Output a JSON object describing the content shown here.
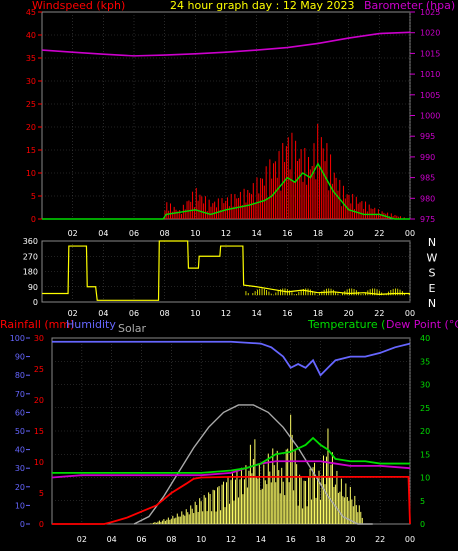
{
  "header": {
    "title": "24 hour graph day : 12 May 2023",
    "left_label": "Windspeed (kph)",
    "right_label": "Barometer (hpa)"
  },
  "colors": {
    "background": "#000000",
    "grid": "#444444",
    "windspeed": "#ff0000",
    "gust": "#ff0000",
    "barometer": "#cc00cc",
    "direction": "#ffff00",
    "temperature": "#00dd00",
    "dewpoint": "#cc00cc",
    "humidity": "#6666ff",
    "rainfall": "#ff0000",
    "solar": "#ffff66",
    "solar_max": "#aaaaaa",
    "title": "#ffff00"
  },
  "bottom_header": {
    "rain_label": "Rainfall (mm)",
    "humidity_label": "Humidity",
    "solar_label": "Solar",
    "temp_label": "Temperature (°C)",
    "dew_label": "Dew Point (°C)"
  },
  "axes": {
    "hours": [
      "02",
      "04",
      "06",
      "08",
      "10",
      "12",
      "14",
      "16",
      "18",
      "20",
      "22",
      "00"
    ],
    "wind_ticks": [
      "45",
      "40",
      "35",
      "30",
      "25",
      "20",
      "15",
      "10",
      "5",
      "0"
    ],
    "baro_ticks": [
      "1025",
      "1020",
      "1015",
      "1010",
      "1005",
      "1000",
      "995",
      "990",
      "985",
      "980",
      "975"
    ],
    "dir_ticks": [
      "360",
      "270",
      "180",
      "90",
      "0"
    ],
    "dir_compass": [
      "N",
      "W",
      "S",
      "E",
      "N"
    ],
    "hum_ticks": [
      "100",
      "90",
      "80",
      "70",
      "60",
      "50",
      "40",
      "30",
      "20",
      "10",
      "0"
    ],
    "rain_ticks": [
      "30",
      "25",
      "20",
      "15",
      "10",
      "5",
      "0"
    ],
    "temp_ticks": [
      "40",
      "35",
      "30",
      "25",
      "20",
      "15",
      "10",
      "5",
      "0"
    ]
  },
  "chart_data": [
    {
      "type": "line",
      "title": "24 hour graph day : 12 May 2023",
      "x_unit": "hour",
      "x_range": [
        0,
        24
      ],
      "series": [
        {
          "name": "Windspeed (kph)",
          "axis": "left",
          "ylim": [
            0,
            45
          ],
          "x": [
            0,
            7.9,
            8.1,
            10,
            11,
            12,
            13.5,
            14.5,
            15,
            15.5,
            16,
            16.5,
            17,
            17.5,
            18,
            18.5,
            19,
            19.5,
            20,
            21,
            22,
            23,
            24
          ],
          "y": [
            0,
            0,
            1,
            2,
            1,
            2,
            3,
            4,
            5,
            7,
            9,
            8,
            10,
            9,
            12,
            9,
            6,
            4,
            2,
            1,
            1,
            0,
            0
          ]
        },
        {
          "name": "Wind gust",
          "axis": "left",
          "ylim": [
            0,
            45
          ],
          "x": [
            0,
            7.9,
            8.1,
            9,
            10,
            11,
            12,
            13.5,
            14.5,
            15,
            15.5,
            16,
            16.5,
            17,
            17.5,
            18,
            18.5,
            19,
            19.5,
            20,
            21,
            22,
            23,
            24
          ],
          "y": [
            0,
            0,
            4,
            2,
            7,
            4,
            5,
            7,
            11,
            14,
            15,
            20,
            18,
            16,
            14,
            21,
            18,
            12,
            8,
            6,
            4,
            2,
            1,
            0
          ]
        },
        {
          "name": "Barometer (hpa)",
          "axis": "right",
          "ylim": [
            975,
            1025
          ],
          "x": [
            0,
            2,
            4,
            6,
            8,
            10,
            12,
            14,
            16,
            18,
            20,
            22,
            24
          ],
          "y": [
            1015.8,
            1015.3,
            1014.8,
            1014.4,
            1014.6,
            1014.9,
            1015.3,
            1015.8,
            1016.4,
            1017.4,
            1018.7,
            1019.8,
            1020.1
          ]
        }
      ]
    },
    {
      "type": "line",
      "x_unit": "hour",
      "x_range": [
        0,
        24
      ],
      "series": [
        {
          "name": "Wind direction",
          "ylim": [
            0,
            360
          ],
          "x": [
            0,
            1.7,
            1.75,
            2.9,
            2.95,
            3.5,
            3.6,
            5.7,
            5.75,
            7.6,
            7.65,
            9.5,
            9.55,
            10.2,
            10.25,
            11.6,
            11.65,
            13.1,
            13.15,
            14.0,
            15.0,
            16.0,
            17.0,
            18.0,
            19.0,
            20.0,
            21.0,
            22.0,
            23.0,
            24.0
          ],
          "y": [
            50,
            50,
            330,
            330,
            90,
            90,
            10,
            10,
            10,
            10,
            360,
            360,
            200,
            200,
            270,
            270,
            330,
            330,
            100,
            90,
            75,
            60,
            70,
            55,
            60,
            50,
            55,
            45,
            50,
            50
          ]
        }
      ]
    },
    {
      "type": "line",
      "x_unit": "hour",
      "x_range": [
        0,
        24
      ],
      "series": [
        {
          "name": "Humidity",
          "axis": "humidity",
          "ylim": [
            0,
            100
          ],
          "x": [
            0,
            2,
            4,
            6,
            8,
            10,
            12,
            14,
            14.7,
            15.5,
            16,
            16.5,
            17,
            17.5,
            18,
            18.5,
            19,
            20,
            21,
            22,
            23,
            24
          ],
          "y": [
            98,
            98,
            98,
            98,
            98,
            98,
            98,
            97,
            95,
            90,
            84,
            86,
            84,
            88,
            80,
            84,
            88,
            90,
            90,
            92,
            95,
            97
          ]
        },
        {
          "name": "Rainfall (mm)",
          "axis": "rain",
          "ylim": [
            0,
            30
          ],
          "x": [
            0,
            3.5,
            4,
            5,
            6,
            7,
            8,
            9,
            9.5,
            10,
            12,
            14,
            16,
            18,
            20,
            22,
            23.9,
            24
          ],
          "y": [
            0,
            0,
            0.3,
            1,
            2,
            3,
            5,
            6.5,
            7.3,
            7.5,
            7.6,
            7.6,
            7.6,
            7.6,
            7.6,
            7.6,
            7.6,
            0
          ]
        },
        {
          "name": "Temperature (°C)",
          "axis": "temp",
          "ylim": [
            0,
            40
          ],
          "x": [
            0,
            2,
            4,
            6,
            8,
            10,
            12,
            13,
            14,
            15,
            16,
            17,
            17.5,
            18,
            18.5,
            19,
            20,
            21,
            22,
            23,
            24
          ],
          "y": [
            11,
            11,
            11,
            11,
            11,
            11,
            11.5,
            12,
            13,
            15,
            15.5,
            17,
            18.5,
            17,
            16,
            14,
            13.5,
            13.5,
            13,
            13,
            13
          ]
        },
        {
          "name": "Dew Point (°C)",
          "axis": "temp",
          "ylim": [
            0,
            40
          ],
          "x": [
            0,
            2,
            4,
            6,
            8,
            10,
            12,
            13,
            14,
            15,
            16,
            17,
            18,
            19,
            20,
            22,
            24
          ],
          "y": [
            10,
            10.5,
            10.5,
            10.5,
            10.5,
            10.5,
            11,
            12,
            13,
            13.5,
            13.5,
            13.5,
            13.5,
            13,
            12.5,
            12.5,
            12
          ]
        },
        {
          "name": "Solar",
          "axis": "solar",
          "ylim": [
            0,
            1000
          ],
          "x": [
            0,
            6.5,
            8,
            9,
            10,
            11,
            12,
            13,
            13.5,
            14,
            14.5,
            15,
            15.5,
            16,
            16.5,
            17,
            17.5,
            18,
            18.5,
            19,
            19.5,
            20,
            20.5,
            21,
            22,
            24
          ],
          "y": [
            0,
            0,
            40,
            80,
            150,
            210,
            280,
            320,
            500,
            280,
            380,
            430,
            280,
            620,
            300,
            250,
            360,
            280,
            520,
            300,
            230,
            200,
            120,
            30,
            0,
            0
          ]
        },
        {
          "name": "Solar max",
          "axis": "solar",
          "ylim": [
            0,
            1000
          ],
          "x": [
            5.5,
            6.5,
            7.5,
            8.5,
            9.5,
            10.5,
            11.5,
            12.5,
            13.5,
            14.5,
            15.5,
            16.5,
            17.5,
            18.5,
            19.5,
            20.5,
            21.5
          ],
          "y": [
            0,
            40,
            150,
            280,
            410,
            520,
            600,
            640,
            640,
            600,
            520,
            410,
            280,
            150,
            40,
            0,
            0
          ]
        }
      ]
    }
  ]
}
